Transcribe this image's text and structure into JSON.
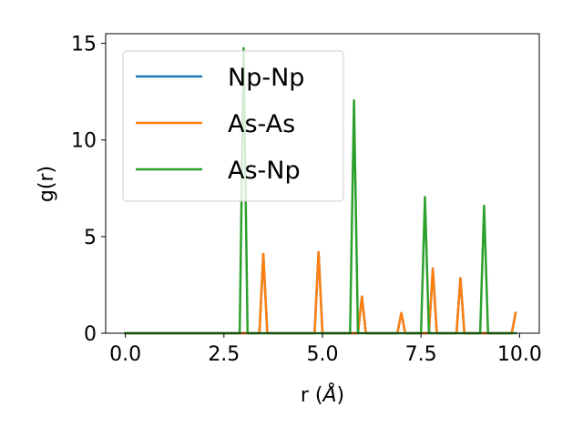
{
  "chart_data": {
    "type": "line",
    "title": "",
    "xlabel_prefix": "r (",
    "xlabel_unit": "Å",
    "xlabel_suffix": ")",
    "ylabel": "g(r)",
    "xlim": [
      -0.5,
      10.5
    ],
    "ylim": [
      0,
      15.5
    ],
    "xticks": [
      0.0,
      2.5,
      5.0,
      7.5,
      10.0
    ],
    "xtick_labels": [
      "0.0",
      "2.5",
      "5.0",
      "7.5",
      "10.0"
    ],
    "yticks": [
      0,
      5,
      10,
      15
    ],
    "ytick_labels": [
      "0",
      "5",
      "10",
      "15"
    ],
    "grid": false,
    "legend_position": "upper-left",
    "series": [
      {
        "name": "Np-Np",
        "color": "#1f77b4",
        "points": [
          [
            0.0,
            0
          ],
          [
            3.4,
            0
          ],
          [
            3.5,
            4.1
          ],
          [
            3.6,
            0
          ],
          [
            4.8,
            0
          ],
          [
            4.9,
            4.2
          ],
          [
            5.0,
            0
          ],
          [
            5.9,
            0
          ],
          [
            6.0,
            1.9
          ],
          [
            6.1,
            0
          ],
          [
            6.9,
            0
          ],
          [
            7.0,
            1.05
          ],
          [
            7.1,
            0
          ],
          [
            7.7,
            0
          ],
          [
            7.8,
            3.35
          ],
          [
            7.9,
            0
          ],
          [
            8.4,
            0
          ],
          [
            8.5,
            2.85
          ],
          [
            8.6,
            0
          ],
          [
            9.8,
            0
          ],
          [
            9.9,
            1.05
          ]
        ]
      },
      {
        "name": "As-As",
        "color": "#ff7f0e",
        "points": [
          [
            0.0,
            0
          ],
          [
            3.4,
            0
          ],
          [
            3.5,
            4.1
          ],
          [
            3.6,
            0
          ],
          [
            4.8,
            0
          ],
          [
            4.9,
            4.2
          ],
          [
            5.0,
            0
          ],
          [
            5.9,
            0
          ],
          [
            6.0,
            1.9
          ],
          [
            6.1,
            0
          ],
          [
            6.9,
            0
          ],
          [
            7.0,
            1.05
          ],
          [
            7.1,
            0
          ],
          [
            7.7,
            0
          ],
          [
            7.8,
            3.35
          ],
          [
            7.9,
            0
          ],
          [
            8.4,
            0
          ],
          [
            8.5,
            2.85
          ],
          [
            8.6,
            0
          ],
          [
            9.8,
            0
          ],
          [
            9.9,
            1.05
          ]
        ]
      },
      {
        "name": "As-Np",
        "color": "#2ca02c",
        "points": [
          [
            0.0,
            0
          ],
          [
            2.9,
            0
          ],
          [
            3.0,
            14.75
          ],
          [
            3.1,
            0
          ],
          [
            5.7,
            0
          ],
          [
            5.8,
            12.05
          ],
          [
            5.9,
            0
          ],
          [
            7.5,
            0
          ],
          [
            7.6,
            7.05
          ],
          [
            7.7,
            0
          ],
          [
            9.0,
            0
          ],
          [
            9.1,
            6.6
          ],
          [
            9.2,
            0
          ],
          [
            9.9,
            0
          ]
        ]
      }
    ]
  }
}
